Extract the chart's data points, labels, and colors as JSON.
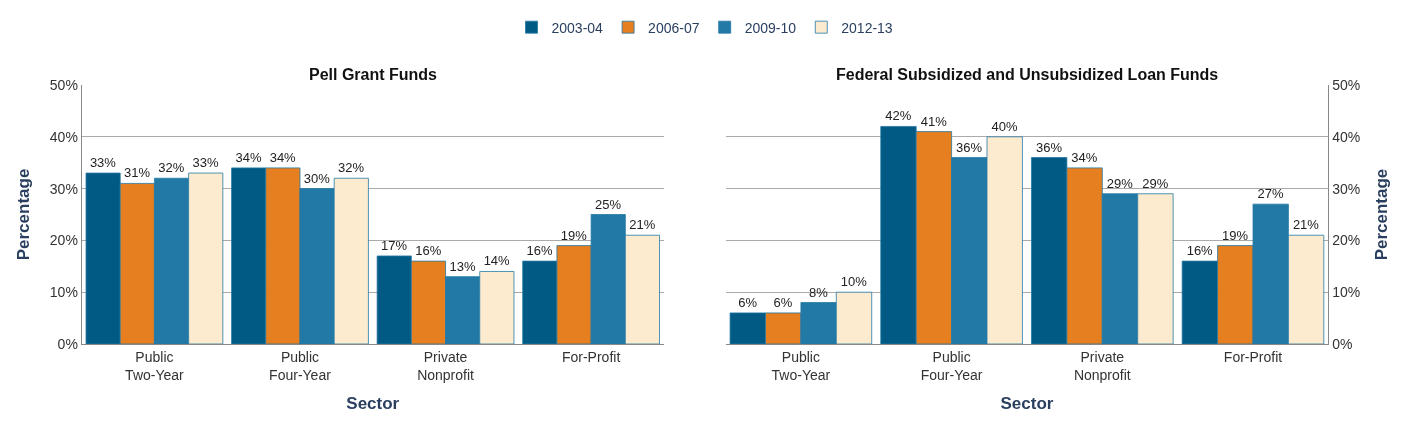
{
  "chart_data": [
    {
      "type": "bar",
      "title": "Pell Grant Funds",
      "xlabel": "Sector",
      "ylabel": "Percentage",
      "categories": [
        "Public Two-Year",
        "Public Four-Year",
        "Private Nonprofit",
        "For-Profit"
      ],
      "ylim": [
        0,
        50
      ],
      "yticks": [
        {
          "value": 0,
          "label": "0%"
        },
        {
          "value": 10,
          "label": "10%"
        },
        {
          "value": 20,
          "label": "20%"
        },
        {
          "value": 30,
          "label": "30%"
        },
        {
          "value": 40,
          "label": "40%"
        },
        {
          "value": 50,
          "label": "50%"
        }
      ],
      "grid": "y",
      "legend": "top",
      "series": [
        {
          "name": "2003-04",
          "color": "#005a84",
          "values": [
            33,
            34,
            17,
            16
          ],
          "value_labels": [
            "33%",
            "34%",
            "17%",
            "16%"
          ]
        },
        {
          "name": "2006-07",
          "color": "#e57f20",
          "values": [
            31,
            34,
            16,
            19
          ],
          "value_labels": [
            "31%",
            "34%",
            "16%",
            "19%"
          ]
        },
        {
          "name": "2009-10",
          "color": "#2379a6",
          "values": [
            32,
            30,
            13,
            25
          ],
          "value_labels": [
            "32%",
            "30%",
            "13%",
            "25%"
          ]
        },
        {
          "name": "2012-13",
          "color": "#fdebd0",
          "values": [
            33,
            32,
            14,
            21
          ],
          "value_labels": [
            "33%",
            "32%",
            "14%",
            "21%"
          ]
        }
      ]
    },
    {
      "type": "bar",
      "title": "Federal Subsidized and Unsubsidized Loan Funds",
      "xlabel": "Sector",
      "y2label": "Percentage",
      "categories": [
        "Public Two-Year",
        "Public Four-Year",
        "Private Nonprofit",
        "For-Profit"
      ],
      "y2lim": [
        0,
        50
      ],
      "y2ticks": [
        {
          "value": 0,
          "label": "0%"
        },
        {
          "value": 10,
          "label": "10%"
        },
        {
          "value": 20,
          "label": "20%"
        },
        {
          "value": 30,
          "label": "30%"
        },
        {
          "value": 40,
          "label": "40%"
        },
        {
          "value": 50,
          "label": "50%"
        }
      ],
      "grid": "y",
      "series": [
        {
          "name": "2003-04",
          "color": "#005a84",
          "axis": "y2",
          "values": [
            6,
            42,
            36,
            16
          ],
          "value_labels": [
            "6%",
            "42%",
            "36%",
            "16%"
          ]
        },
        {
          "name": "2006-07",
          "color": "#e57f20",
          "axis": "y2",
          "values": [
            6,
            41,
            34,
            19
          ],
          "value_labels": [
            "6%",
            "41%",
            "34%",
            "19%"
          ]
        },
        {
          "name": "2009-10",
          "color": "#2379a6",
          "axis": "y2",
          "values": [
            8,
            36,
            29,
            27
          ],
          "value_labels": [
            "8%",
            "36%",
            "29%",
            "27%"
          ]
        },
        {
          "name": "2012-13",
          "color": "#fdebd0",
          "axis": "y2",
          "values": [
            10,
            40,
            29,
            21
          ],
          "value_labels": [
            "10%",
            "40%",
            "29%",
            "21%"
          ]
        }
      ]
    }
  ]
}
